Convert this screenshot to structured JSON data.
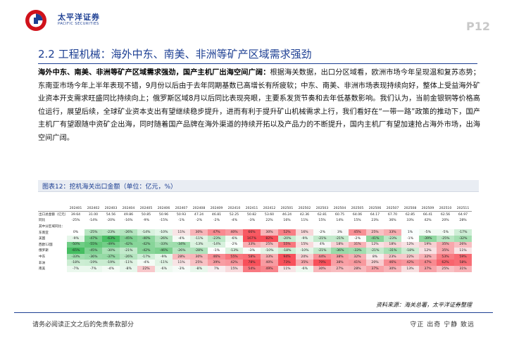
{
  "header": {
    "logo_cn": "太平洋证券",
    "logo_en": "PACIFIC SECURITIES",
    "page_number": "P12"
  },
  "section": {
    "title": "2.2 工程机械：海外中东、南美、非洲等矿产区域需求强劲"
  },
  "body": {
    "lead": "海外中东、南美、非洲等矿产区域需求强劲，国产主机厂出海空间广阔：",
    "text": "根据海关数据，出口分区域看，欧洲市场今年呈现温和复苏态势；东南亚市场今年上半年表现不错，9月份以后由于去年同期基数已高增长有所疲软；中东、南美、非洲市场表现持续向好，整体上受益海外矿业资本开支需求旺盛同比持续向上；俄罗斯区域8月以后同比表现亮眼，主要系发货节奏和去年低基数影响。我们认为，当前金银铜等价格高位运行，展望后续，全球矿业资本支出有望继续稳步提升，进而有利于提升矿山机械需求上行，我们看好在“一带一路”政策的推动下，国产主机厂有望跟随中资矿企出海，同时随着国产品牌在海外渠道的持续开拓以及产品力的不断提升，国内主机厂有望加速抢占海外市场，出海空间广阔。"
  },
  "figure": {
    "title": "图表12：挖机海关出口金额（单位：亿元，%）",
    "source": "资料来源：海关总署，太平洋证券整理"
  },
  "table": {
    "columns": [
      "202401",
      "202402",
      "202403",
      "202404",
      "202405",
      "202406",
      "202407",
      "202408",
      "202409",
      "202410",
      "202411",
      "202412",
      "202501",
      "202502",
      "202503",
      "202504",
      "202505",
      "202506",
      "202507",
      "202508",
      "202509",
      "202510",
      "202511"
    ],
    "rows": [
      {
        "label": "出口总金额（亿元）",
        "values": [
          "39.64",
          "31.00",
          "54.56",
          "49.86",
          "50.85",
          "50.96",
          "50.93",
          "47.24",
          "46.81",
          "52.25",
          "50.82",
          "53.60",
          "46.24",
          "42.36",
          "62.81",
          "60.75",
          "64.06",
          "64.17",
          "67.70",
          "62.85",
          "66.41",
          "62.56",
          "64.97"
        ]
      },
      {
        "label": "同比",
        "values": [
          "-25%",
          "-14%",
          "-20%",
          "-16%",
          "-9%",
          "-15%",
          "-1%",
          "-2%",
          "-2%",
          "-4%",
          "-3%",
          "22%",
          "16%",
          "11%",
          "15%",
          "14%",
          "15%",
          "23%",
          "36%",
          "33%",
          "42%",
          "20%",
          "28%"
        ]
      },
      {
        "label": "其中分区域同比：",
        "values": [
          "",
          "",
          "",
          "",
          "",
          "",
          "",
          "",
          "",
          "",
          "",
          "",
          "",
          "",
          "",
          "",
          "",
          "",
          "",
          "",
          "",
          "",
          ""
        ]
      },
      {
        "label": "东南亚",
        "values": [
          "0%",
          "-25%",
          "-23%",
          "-26%",
          "-14%",
          "-10%",
          "11%",
          "30%",
          "47%",
          "40%",
          "66%",
          "30%",
          "52%",
          "16%",
          "-2%",
          "3%",
          "45%",
          "25%",
          "33%",
          "1%",
          "-5%",
          "-5%",
          "-17%"
        ]
      },
      {
        "label": "美国",
        "values": [
          "-9%",
          "-47%",
          "-63%",
          "-45%",
          "-40%",
          "-26%",
          "-4%",
          "-11%",
          "-23%",
          "-6%",
          "167%",
          "82%",
          "-20%",
          "-9%",
          "-21%",
          "-21%",
          "-2%",
          "-41%",
          "-23%",
          "-1%",
          "-39%",
          "-25%",
          "-32%"
        ]
      },
      {
        "label": "西欧12国",
        "values": [
          "-50%",
          "-55%",
          "-49%",
          "-42%",
          "-42%",
          "-33%",
          "-34%",
          "-13%",
          "-14%",
          "-2%",
          "33%",
          "25%",
          "55%",
          "15%",
          "4%",
          "18%",
          "31%",
          "12%",
          "18%",
          "12%",
          "19%",
          "35%",
          "26%"
        ]
      },
      {
        "label": "俄罗斯",
        "values": [
          "-65%",
          "-45%",
          "-30%",
          "-21%",
          "-42%",
          "-46%",
          "-26%",
          "-28%",
          "-1%",
          "-13%",
          "-3%",
          "-10%",
          "-18%",
          "-10%",
          "-21%",
          "-36%",
          "-33%",
          "-21%",
          "-31%",
          "-18%",
          "12%",
          "35%",
          "11%"
        ]
      },
      {
        "label": "中东",
        "values": [
          "-33%",
          "-36%",
          "-37%",
          "-26%",
          "-17%",
          "-9%",
          "28%",
          "30%",
          "46%",
          "55%",
          "58%",
          "33%",
          "94%",
          "20%",
          "44%",
          "38%",
          "32%",
          "8%",
          "23%",
          "22%",
          "32%",
          "53%",
          "59%"
        ]
      },
      {
        "label": "非洲",
        "values": [
          "-18%",
          "-19%",
          "-19%",
          "-11%",
          "-4%",
          "-11%",
          "11%",
          "25%",
          "39%",
          "42%",
          "78%",
          "40%",
          "73%",
          "35%",
          "70%",
          "38%",
          "41%",
          "20%",
          "46%",
          "42%",
          "47%",
          "62%",
          "58%"
        ]
      },
      {
        "label": "南美",
        "values": [
          "-7%",
          "-7%",
          "-4%",
          "-8%",
          "22%",
          "-6%",
          "-3%",
          "-8%",
          "7%",
          "15%",
          "54%",
          "49%",
          "11%",
          "-6%",
          "30%",
          "27%",
          "28%",
          "37%",
          "30%",
          "13%",
          "37%",
          "25%",
          "31%"
        ]
      }
    ]
  },
  "footer": {
    "left": "请务必阅读正文之后的免责条款部分",
    "right": "守正 出奇 宁静 致远"
  },
  "colors": {
    "brand_blue": "#1d3f93",
    "positive": "#e0505a",
    "negative": "#3ea85e"
  }
}
